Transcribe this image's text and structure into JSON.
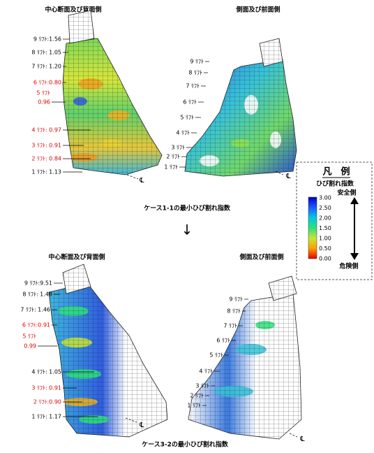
{
  "panels": [
    {
      "title": "中心断面及び背面側",
      "centerline": "℄",
      "labels": [
        {
          "lines": [
            "9 ﾘﾌﾄ:1.56"
          ],
          "color": "#000000"
        },
        {
          "lines": [
            "8 ﾘﾌﾄ: 1.05"
          ],
          "color": "#000000"
        },
        {
          "lines": [
            "7 ﾘﾌﾄ: 1.20"
          ],
          "color": "#000000"
        },
        {
          "lines": [
            "6 ﾘﾌﾄ:0.80"
          ],
          "color": "#e00000"
        },
        {
          "lines": [
            "5 ﾘﾌﾄ",
            "0.96"
          ],
          "color": "#e00000"
        },
        {
          "lines": [
            "4 ﾘﾌﾄ: 0.97"
          ],
          "color": "#e00000"
        },
        {
          "lines": [
            "3 ﾘﾌﾄ: 0.91"
          ],
          "color": "#e00000"
        },
        {
          "lines": [
            "2 ﾘﾌﾄ: 0.84"
          ],
          "color": "#e00000"
        },
        {
          "lines": [
            "1 ﾘﾌﾄ: 1.13"
          ],
          "color": "#000000"
        }
      ]
    },
    {
      "title": "側面及び前面側",
      "centerline": "℄",
      "labels": [
        {
          "lines": [
            "9 ﾘﾌﾄ"
          ],
          "color": "#000000"
        },
        {
          "lines": [
            "8 ﾘﾌﾄ"
          ],
          "color": "#000000"
        },
        {
          "lines": [
            "7 ﾘﾌﾄ"
          ],
          "color": "#000000"
        },
        {
          "lines": [
            "6 ﾘﾌﾄ"
          ],
          "color": "#000000"
        },
        {
          "lines": [
            "5 ﾘﾌﾄ"
          ],
          "color": "#000000"
        },
        {
          "lines": [
            "4 ﾘﾌﾄ"
          ],
          "color": "#000000"
        },
        {
          "lines": [
            "3 ﾘﾌﾄ"
          ],
          "color": "#000000"
        },
        {
          "lines": [
            "2 ﾘﾌﾄ"
          ],
          "color": "#000000"
        },
        {
          "lines": [
            "1 ﾘﾌﾄ"
          ],
          "color": "#000000"
        }
      ]
    },
    {
      "title": "中心断面及び背面側",
      "centerline": "℄",
      "labels": [
        {
          "lines": [
            "9 ﾘﾌﾄ:9.51"
          ],
          "color": "#000000"
        },
        {
          "lines": [
            "8 ﾘﾌﾄ: 1.48"
          ],
          "color": "#000000"
        },
        {
          "lines": [
            "7 ﾘﾌﾄ: 1.46"
          ],
          "color": "#000000"
        },
        {
          "lines": [
            "6 ﾘﾌﾄ:0.91"
          ],
          "color": "#e00000"
        },
        {
          "lines": [
            "5 ﾘﾌﾄ",
            "0.99"
          ],
          "color": "#e00000"
        },
        {
          "lines": [
            "4 ﾘﾌﾄ: 1.05"
          ],
          "color": "#000000"
        },
        {
          "lines": [
            "3 ﾘﾌﾄ: 0.91"
          ],
          "color": "#e00000"
        },
        {
          "lines": [
            "2 ﾘﾌﾄ:0.90"
          ],
          "color": "#e00000"
        },
        {
          "lines": [
            "1 ﾘﾌﾄ: 1.17"
          ],
          "color": "#000000"
        }
      ]
    },
    {
      "title": "側面及び前面側",
      "centerline": "℄",
      "labels": [
        {
          "lines": [
            "9 ﾘﾌﾄ"
          ],
          "color": "#000000"
        },
        {
          "lines": [
            "8 ﾘﾌﾄ"
          ],
          "color": "#000000"
        },
        {
          "lines": [
            "7 ﾘﾌﾄ"
          ],
          "color": "#000000"
        },
        {
          "lines": [
            "6 ﾘﾌﾄ"
          ],
          "color": "#000000"
        },
        {
          "lines": [
            "5 ﾘﾌﾄ"
          ],
          "color": "#000000"
        },
        {
          "lines": [
            "4 ﾘﾌﾄ"
          ],
          "color": "#000000"
        },
        {
          "lines": [
            "3 ﾘﾌﾄ"
          ],
          "color": "#000000"
        },
        {
          "lines": [
            "2 ﾘﾌﾄ"
          ],
          "color": "#000000"
        },
        {
          "lines": [
            "1 ﾘﾌﾄ"
          ],
          "color": "#000000"
        }
      ]
    }
  ],
  "captions": [
    "ケース1-1の最小ひび割れ指数",
    "ケース3-2の最小ひび割れ指数"
  ],
  "arrow": "↓",
  "legend": {
    "title": "凡　例",
    "subtitle": "ひび割れ指数",
    "safe": "安全側",
    "danger": "危険側",
    "ticks": [
      "3.00",
      "2.50",
      "2.00",
      "1.50",
      "1.00",
      "0.50",
      "0.00"
    ]
  }
}
